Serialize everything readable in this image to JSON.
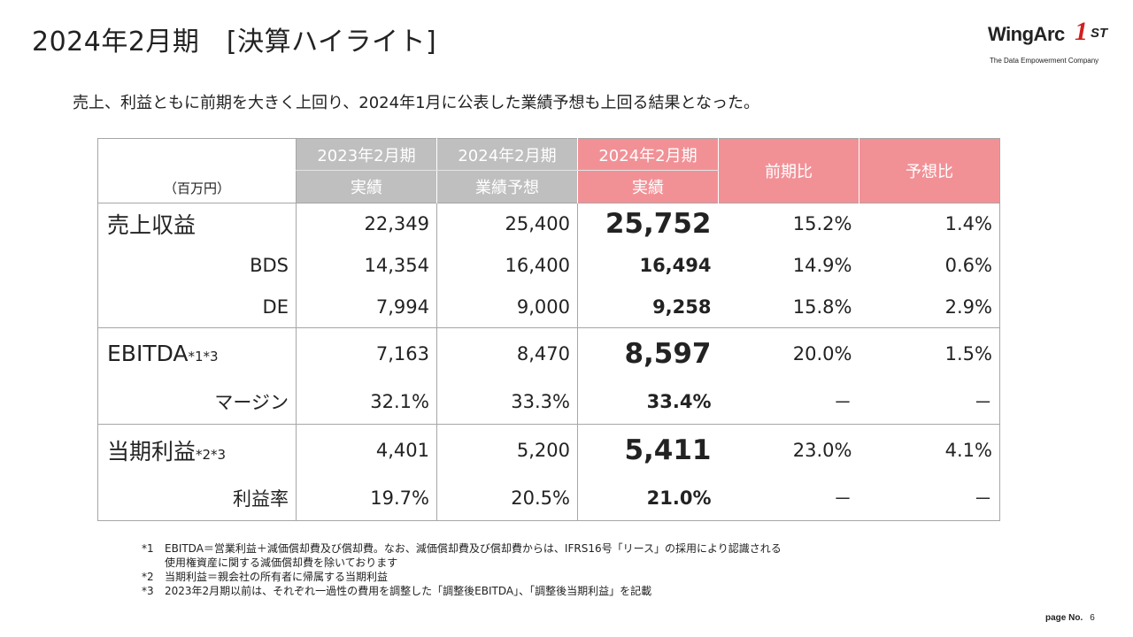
{
  "title": "2024年2月期　[決算ハイライト]",
  "logo": {
    "brand": "WingArc",
    "mark": "1",
    "suffix": "ST",
    "tagline": "The Data Empowerment Company"
  },
  "lead": "売上、利益ともに前期を大きく上回り、2024年1月に公表した業績予想も上回る結果となった。",
  "table": {
    "unit": "（百万円）",
    "headers": {
      "fy2023_top": "2023年2月期",
      "fy2023_bottom": "実績",
      "forecast_top": "2024年2月期",
      "forecast_bottom": "業績予想",
      "fy2024_top": "2024年2月期",
      "fy2024_bottom": "実績",
      "yoy": "前期比",
      "vs_forecast": "予想比"
    },
    "rows": {
      "revenue": {
        "label": "売上収益",
        "prev": "22,349",
        "forecast": "25,400",
        "actual": "25,752",
        "yoy": "15.2%",
        "vs": "1.4%"
      },
      "bds": {
        "label": "BDS",
        "prev": "14,354",
        "forecast": "16,400",
        "actual": "16,494",
        "yoy": "14.9%",
        "vs": "0.6%"
      },
      "de": {
        "label": "DE",
        "prev": "7,994",
        "forecast": "9,000",
        "actual": "9,258",
        "yoy": "15.8%",
        "vs": "2.9%"
      },
      "ebitda": {
        "label": "EBITDA",
        "note": "*1*3",
        "prev": "7,163",
        "forecast": "8,470",
        "actual": "8,597",
        "yoy": "20.0%",
        "vs": "1.5%"
      },
      "margin": {
        "label": "マージン",
        "prev": "32.1%",
        "forecast": "33.3%",
        "actual": "33.4%",
        "yoy": "－",
        "vs": "－"
      },
      "net_income": {
        "label": "当期利益",
        "note": "*2*3",
        "prev": "4,401",
        "forecast": "5,200",
        "actual": "5,411",
        "yoy": "23.0%",
        "vs": "4.1%"
      },
      "profit_rate": {
        "label": "利益率",
        "prev": "19.7%",
        "forecast": "20.5%",
        "actual": "21.0%",
        "yoy": "－",
        "vs": "－"
      }
    }
  },
  "notes": [
    {
      "key": "*1",
      "text": "EBITDA＝営業利益＋減価償却費及び償却費。なお、減価償却費及び償却費からは、IFRS16号「リース」の採用により認識される"
    },
    {
      "key": "",
      "text": "使用権資産に関する減価償却費を除いております"
    },
    {
      "key": "*2",
      "text": "当期利益＝親会社の所有者に帰属する当期利益"
    },
    {
      "key": "*3",
      "text": "2023年2月期以前は、それぞれ一過性の費用を調整した「調整後EBITDA」、「調整後当期利益」を記載"
    }
  ],
  "page": {
    "label": "page No.",
    "number": "6"
  },
  "colors": {
    "accent_pink": "#f19196",
    "header_gray": "#bfbfbf",
    "brand_red": "#d21e1e"
  }
}
